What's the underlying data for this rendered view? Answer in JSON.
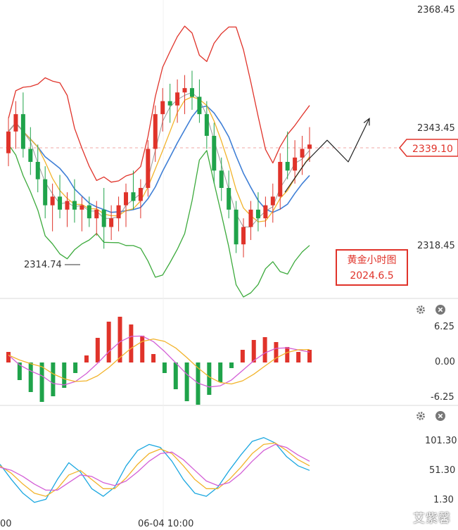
{
  "chart_data": [
    {
      "type": "candlestick",
      "title": "",
      "price_axis": {
        "ticks": [
          "2368.45",
          "2343.45",
          "2318.45"
        ],
        "ylim": [
          2305,
          2371
        ]
      },
      "current_price": "2339.10",
      "low_marker": "2314.74",
      "time_label": "06-04 10:00",
      "left_time_fragment": "00",
      "annotation": {
        "line1": "黄金小时图",
        "line2": "2024.6.5"
      },
      "candles": [
        [
          2337,
          2345,
          2334,
          2342
        ],
        [
          2342,
          2349,
          2338,
          2346
        ],
        [
          2346,
          2351,
          2336,
          2338
        ],
        [
          2338,
          2343,
          2332,
          2335
        ],
        [
          2335,
          2339,
          2328,
          2331
        ],
        [
          2331,
          2334,
          2322,
          2325
        ],
        [
          2325,
          2330,
          2319,
          2327
        ],
        [
          2327,
          2332,
          2322,
          2324
        ],
        [
          2324,
          2328,
          2320,
          2326
        ],
        [
          2326,
          2331,
          2321,
          2324
        ],
        [
          2324,
          2327,
          2319,
          2325
        ],
        [
          2325,
          2327,
          2320,
          2322
        ],
        [
          2322,
          2326,
          2318,
          2324
        ],
        [
          2324,
          2329,
          2315,
          2320
        ],
        [
          2320,
          2325,
          2317,
          2322
        ],
        [
          2322,
          2327,
          2319,
          2325
        ],
        [
          2325,
          2330,
          2320,
          2328
        ],
        [
          2328,
          2333,
          2324,
          2326
        ],
        [
          2326,
          2331,
          2322,
          2329
        ],
        [
          2329,
          2340,
          2327,
          2338
        ],
        [
          2338,
          2348,
          2335,
          2346
        ],
        [
          2346,
          2352,
          2342,
          2349
        ],
        [
          2349,
          2353,
          2344,
          2348
        ],
        [
          2348,
          2354,
          2344,
          2351
        ],
        [
          2351,
          2355,
          2346,
          2352
        ],
        [
          2352,
          2356,
          2347,
          2350
        ],
        [
          2350,
          2354,
          2344,
          2346
        ],
        [
          2346,
          2349,
          2338,
          2341
        ],
        [
          2341,
          2344,
          2330,
          2333
        ],
        [
          2333,
          2336,
          2326,
          2329
        ],
        [
          2329,
          2333,
          2322,
          2324
        ],
        [
          2324,
          2326,
          2314,
          2316
        ],
        [
          2316,
          2322,
          2313,
          2320
        ],
        [
          2320,
          2326,
          2317,
          2324
        ],
        [
          2324,
          2328,
          2319,
          2322
        ],
        [
          2322,
          2327,
          2320,
          2325
        ],
        [
          2325,
          2330,
          2321,
          2327
        ],
        [
          2327,
          2337,
          2324,
          2335
        ],
        [
          2335,
          2342,
          2331,
          2333
        ],
        [
          2333,
          2340,
          2330,
          2336
        ],
        [
          2336,
          2341,
          2332,
          2338
        ],
        [
          2338,
          2343,
          2335,
          2339
        ]
      ],
      "projection": [
        [
          2330,
          2328
        ],
        [
          2338,
          2335
        ],
        [
          2345,
          2340
        ],
        [
          2332,
          2335
        ],
        [
          2350,
          2345
        ]
      ]
    },
    {
      "type": "macd",
      "axis_ticks": [
        "6.25",
        "0.00",
        "-6.25"
      ],
      "ylim": [
        -7.5,
        7.5
      ],
      "histogram": [
        1.5,
        -2.5,
        -4.2,
        -5.6,
        -4.8,
        -3.6,
        -1.5,
        1.0,
        3.5,
        5.8,
        6.5,
        5.4,
        3.8,
        1.2,
        -1.5,
        -3.8,
        -5.5,
        -6.0,
        -4.6,
        -2.8,
        -0.8,
        1.8,
        3.2,
        3.6,
        2.9,
        2.2,
        1.5,
        1.8
      ]
    },
    {
      "type": "kdj",
      "axis_ticks": [
        "101.30",
        "51.30",
        "1.30"
      ],
      "ylim": [
        -5,
        115
      ],
      "series": [
        {
          "values": [
            60,
            40,
            22,
            10,
            14,
            40,
            62,
            50,
            28,
            18,
            30,
            58,
            78,
            86,
            82,
            64,
            40,
            22,
            18,
            30,
            52,
            72,
            90,
            95,
            88,
            70,
            58,
            52
          ]
        },
        {
          "values": [
            58,
            48,
            34,
            22,
            18,
            28,
            46,
            52,
            40,
            28,
            28,
            42,
            60,
            74,
            80,
            74,
            58,
            40,
            28,
            28,
            40,
            56,
            74,
            86,
            88,
            78,
            66,
            58
          ]
        },
        {
          "values": [
            56,
            52,
            44,
            34,
            26,
            26,
            36,
            46,
            44,
            36,
            32,
            38,
            50,
            64,
            74,
            76,
            66,
            52,
            38,
            32,
            36,
            48,
            64,
            78,
            86,
            82,
            72,
            64
          ]
        }
      ]
    }
  ],
  "colors": {
    "bull": "#e0332a",
    "bear": "#1fa34a",
    "boll_upper": "#e0332a",
    "boll_mid": "#3f7fd6",
    "boll_lower": "#3caa3c",
    "ma_yellow": "#f2b32a",
    "ma_gray": "#9a9a9a",
    "kdj_k": "#1aa7e0",
    "kdj_d": "#f2b32a",
    "kdj_j": "#d35fd6"
  },
  "icons": {
    "settings": "gear-icon",
    "close": "close-icon"
  },
  "watermark": "艾紫馨"
}
